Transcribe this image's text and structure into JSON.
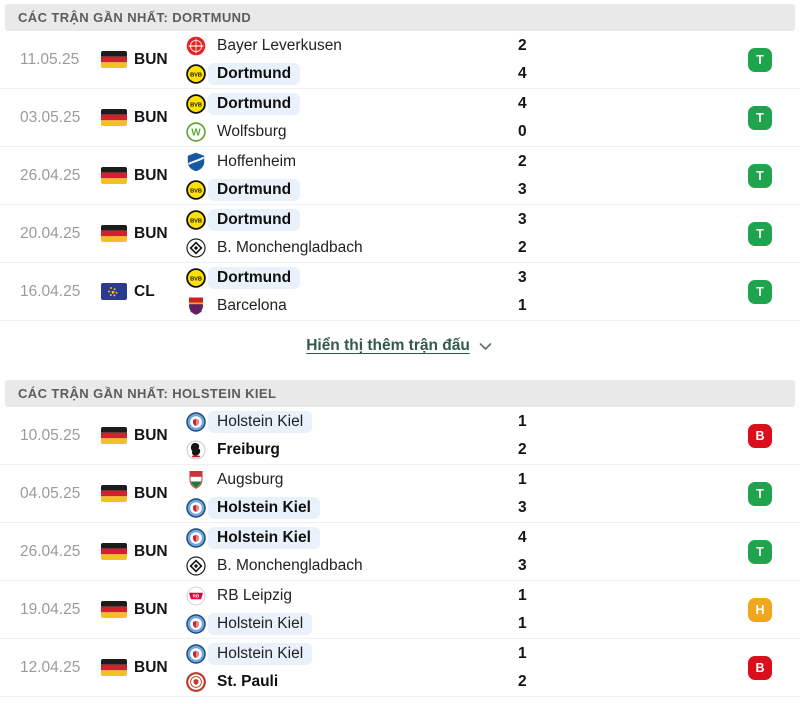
{
  "colors": {
    "team_highlight": "#e9f1fa",
    "result_win": "#1fa34d",
    "result_loss": "#d9101c",
    "result_draw": "#f0a61f",
    "header_bg": "#e9e9e9"
  },
  "result_colors": {
    "T": "#1fa34d",
    "B": "#d9101c",
    "H": "#f0a61f"
  },
  "show_more_label": "Hiển thị thêm trận đấu",
  "sections": [
    {
      "title": "CÁC TRẬN GẦN NHẤT: DORTMUND",
      "matches": [
        {
          "date": "11.05.25",
          "flag": "germany",
          "league": "BUN",
          "result": "T",
          "teams": [
            {
              "name": "Bayer Leverkusen",
              "logo": "leverkusen",
              "score": "2",
              "bold": false,
              "highlight": false
            },
            {
              "name": "Dortmund",
              "logo": "dortmund",
              "score": "4",
              "bold": true,
              "highlight": true
            }
          ]
        },
        {
          "date": "03.05.25",
          "flag": "germany",
          "league": "BUN",
          "result": "T",
          "teams": [
            {
              "name": "Dortmund",
              "logo": "dortmund",
              "score": "4",
              "bold": true,
              "highlight": true
            },
            {
              "name": "Wolfsburg",
              "logo": "wolfsburg",
              "score": "0",
              "bold": false,
              "highlight": false
            }
          ]
        },
        {
          "date": "26.04.25",
          "flag": "germany",
          "league": "BUN",
          "result": "T",
          "teams": [
            {
              "name": "Hoffenheim",
              "logo": "hoffenheim",
              "score": "2",
              "bold": false,
              "highlight": false
            },
            {
              "name": "Dortmund",
              "logo": "dortmund",
              "score": "3",
              "bold": true,
              "highlight": true
            }
          ]
        },
        {
          "date": "20.04.25",
          "flag": "germany",
          "league": "BUN",
          "result": "T",
          "teams": [
            {
              "name": "Dortmund",
              "logo": "dortmund",
              "score": "3",
              "bold": true,
              "highlight": true
            },
            {
              "name": "B. Monchengladbach",
              "logo": "gladbach",
              "score": "2",
              "bold": false,
              "highlight": false
            }
          ]
        },
        {
          "date": "16.04.25",
          "flag": "europe",
          "league": "CL",
          "result": "T",
          "teams": [
            {
              "name": "Dortmund",
              "logo": "dortmund",
              "score": "3",
              "bold": true,
              "highlight": true
            },
            {
              "name": "Barcelona",
              "logo": "barcelona",
              "score": "1",
              "bold": false,
              "highlight": false
            }
          ]
        }
      ]
    },
    {
      "title": "CÁC TRẬN GẦN NHẤT: HOLSTEIN KIEL",
      "matches": [
        {
          "date": "10.05.25",
          "flag": "germany",
          "league": "BUN",
          "result": "B",
          "teams": [
            {
              "name": "Holstein Kiel",
              "logo": "kiel",
              "score": "1",
              "bold": false,
              "highlight": true
            },
            {
              "name": "Freiburg",
              "logo": "freiburg",
              "score": "2",
              "bold": true,
              "highlight": false
            }
          ]
        },
        {
          "date": "04.05.25",
          "flag": "germany",
          "league": "BUN",
          "result": "T",
          "teams": [
            {
              "name": "Augsburg",
              "logo": "augsburg",
              "score": "1",
              "bold": false,
              "highlight": false
            },
            {
              "name": "Holstein Kiel",
              "logo": "kiel",
              "score": "3",
              "bold": true,
              "highlight": true
            }
          ]
        },
        {
          "date": "26.04.25",
          "flag": "germany",
          "league": "BUN",
          "result": "T",
          "teams": [
            {
              "name": "Holstein Kiel",
              "logo": "kiel",
              "score": "4",
              "bold": true,
              "highlight": true
            },
            {
              "name": "B. Monchengladbach",
              "logo": "gladbach",
              "score": "3",
              "bold": false,
              "highlight": false
            }
          ]
        },
        {
          "date": "19.04.25",
          "flag": "germany",
          "league": "BUN",
          "result": "H",
          "teams": [
            {
              "name": "RB Leipzig",
              "logo": "leipzig",
              "score": "1",
              "bold": false,
              "highlight": false
            },
            {
              "name": "Holstein Kiel",
              "logo": "kiel",
              "score": "1",
              "bold": false,
              "highlight": true
            }
          ]
        },
        {
          "date": "12.04.25",
          "flag": "germany",
          "league": "BUN",
          "result": "B",
          "teams": [
            {
              "name": "Holstein Kiel",
              "logo": "kiel",
              "score": "1",
              "bold": false,
              "highlight": true
            },
            {
              "name": "St. Pauli",
              "logo": "stpauli",
              "score": "2",
              "bold": true,
              "highlight": false
            }
          ]
        }
      ]
    }
  ]
}
